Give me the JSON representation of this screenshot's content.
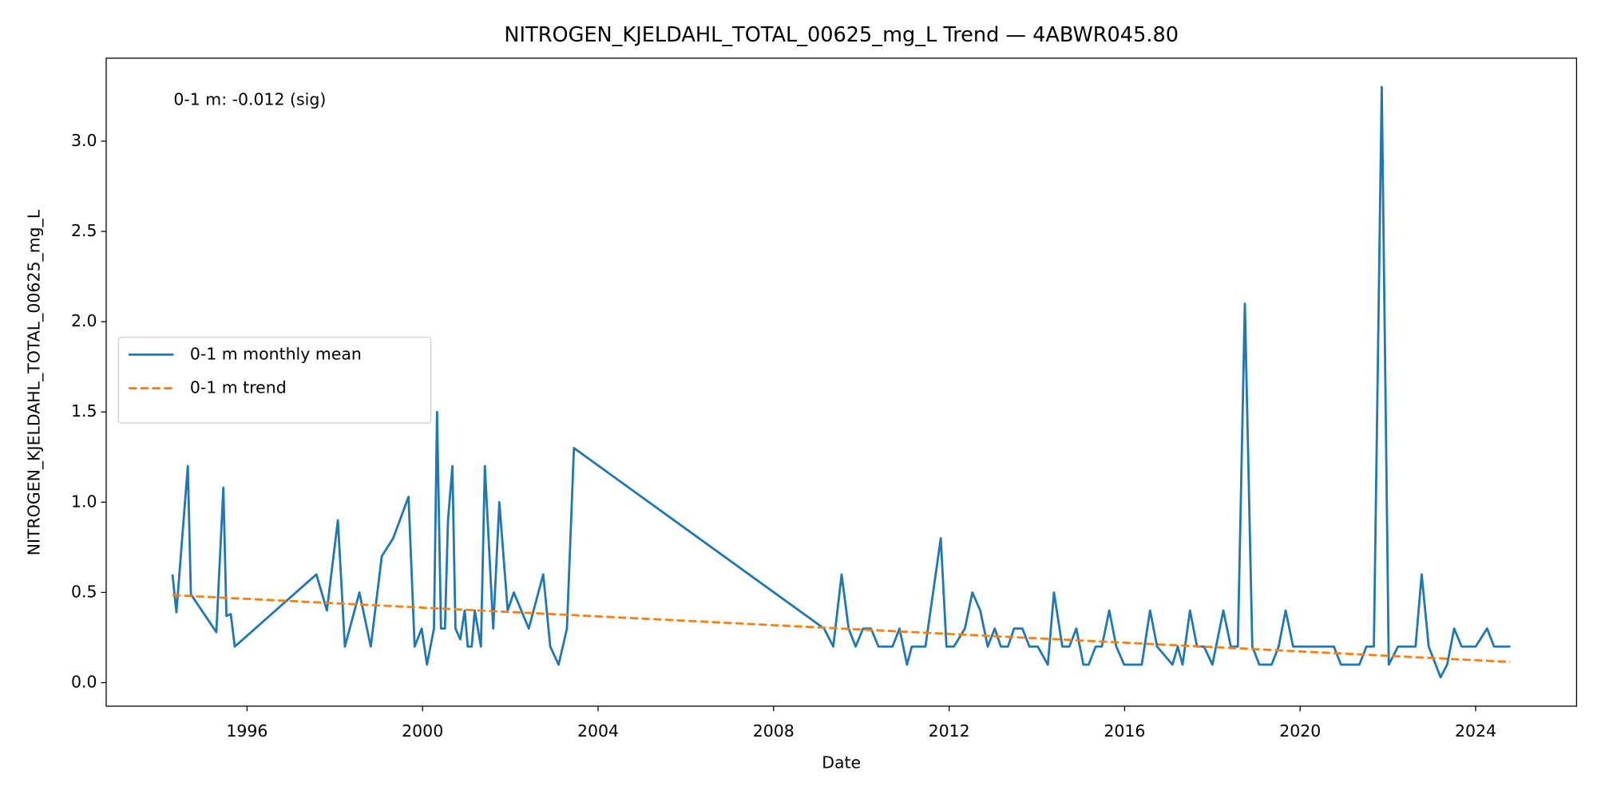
{
  "chart_data": {
    "type": "line",
    "title": "NITROGEN_KJELDAHL_TOTAL_00625_mg_L Trend — 4ABWR045.80",
    "x_label": "Date",
    "y_label": "NITROGEN_KJELDAHL_TOTAL_00625_mg_L",
    "annotation": "0-1 m: -0.012 (sig)",
    "legend": "center left",
    "xlim": [
      1992.79,
      2026.3
    ],
    "ylim": [
      -0.13,
      3.46
    ],
    "xticks": [
      1996,
      2000,
      2004,
      2008,
      2012,
      2016,
      2020,
      2024
    ],
    "yticks": [
      {
        "value": 0,
        "label": "0.0"
      },
      0.5,
      {
        "value": 1,
        "label": "1.0"
      },
      1.5,
      {
        "value": 2,
        "label": "2.0"
      },
      2.5,
      {
        "value": 3,
        "label": "3.0"
      }
    ],
    "x": [
      1994.3,
      1994.39,
      1994.65,
      1994.72,
      1995.3,
      1995.46,
      1995.53,
      1995.63,
      1995.72,
      1997.58,
      1997.82,
      1998.07,
      1998.23,
      1998.56,
      1998.82,
      1999.07,
      1999.33,
      1999.68,
      1999.82,
      1999.98,
      2000.1,
      2000.26,
      2000.33,
      2000.42,
      2000.51,
      2000.58,
      2000.68,
      2000.75,
      2000.86,
      2000.96,
      2001.03,
      2001.12,
      2001.19,
      2001.33,
      2001.42,
      2001.61,
      2001.75,
      2001.94,
      2002.08,
      2002.42,
      2002.75,
      2002.91,
      2003.1,
      2003.29,
      2003.45,
      2009.15,
      2009.36,
      2009.55,
      2009.71,
      2009.87,
      2010.04,
      2010.22,
      2010.39,
      2010.71,
      2010.87,
      2011.04,
      2011.15,
      2011.46,
      2011.81,
      2011.94,
      2012.11,
      2012.36,
      2012.53,
      2012.71,
      2012.88,
      2013.04,
      2013.18,
      2013.34,
      2013.48,
      2013.67,
      2013.83,
      2014.02,
      2014.25,
      2014.39,
      2014.58,
      2014.74,
      2014.9,
      2015.06,
      2015.18,
      2015.34,
      2015.48,
      2015.65,
      2015.81,
      2015.99,
      2016.39,
      2016.58,
      2016.74,
      2017.09,
      2017.21,
      2017.32,
      2017.49,
      2017.65,
      2017.81,
      2018.0,
      2018.25,
      2018.42,
      2018.58,
      2018.74,
      2018.91,
      2019.07,
      2019.35,
      2019.51,
      2019.67,
      2019.84,
      2020.77,
      2020.93,
      2021.35,
      2021.51,
      2021.68,
      2021.86,
      2022.02,
      2022.23,
      2022.63,
      2022.77,
      2022.93,
      2023.2,
      2023.35,
      2023.51,
      2023.68,
      2024.0,
      2024.26,
      2024.42,
      2024.79
    ],
    "series": [
      {
        "name": "0-1 m monthly mean",
        "color": "#1f77b4",
        "style": "solid",
        "values": [
          0.6,
          0.39,
          1.2,
          0.49,
          0.28,
          1.08,
          0.37,
          0.38,
          0.2,
          0.6,
          0.4,
          0.9,
          0.2,
          0.5,
          0.2,
          0.7,
          0.8,
          1.03,
          0.2,
          0.3,
          0.1,
          0.3,
          1.5,
          0.3,
          0.3,
          0.9,
          1.2,
          0.3,
          0.24,
          0.4,
          0.2,
          0.2,
          0.4,
          0.2,
          1.2,
          0.3,
          1.0,
          0.4,
          0.5,
          0.3,
          0.6,
          0.2,
          0.1,
          0.3,
          1.3,
          0.3,
          0.2,
          0.6,
          0.3,
          0.2,
          0.3,
          0.3,
          0.2,
          0.2,
          0.3,
          0.1,
          0.2,
          0.2,
          0.8,
          0.2,
          0.2,
          0.3,
          0.5,
          0.4,
          0.2,
          0.3,
          0.2,
          0.2,
          0.3,
          0.3,
          0.2,
          0.2,
          0.1,
          0.5,
          0.2,
          0.2,
          0.3,
          0.1,
          0.1,
          0.2,
          0.2,
          0.4,
          0.2,
          0.1,
          0.1,
          0.4,
          0.2,
          0.1,
          0.2,
          0.1,
          0.4,
          0.2,
          0.2,
          0.1,
          0.4,
          0.2,
          0.2,
          2.1,
          0.2,
          0.1,
          0.1,
          0.2,
          0.4,
          0.2,
          0.2,
          0.1,
          0.1,
          0.2,
          0.2,
          3.3,
          0.1,
          0.2,
          0.2,
          0.6,
          0.2,
          0.03,
          0.1,
          0.3,
          0.2,
          0.2,
          0.3,
          0.2,
          0.2
        ]
      },
      {
        "name": "0-1 m trend",
        "color": "#ff7f0e",
        "style": "dashed",
        "x": [
          1994.3,
          2024.79
        ],
        "values": [
          0.485,
          0.115
        ]
      }
    ]
  }
}
